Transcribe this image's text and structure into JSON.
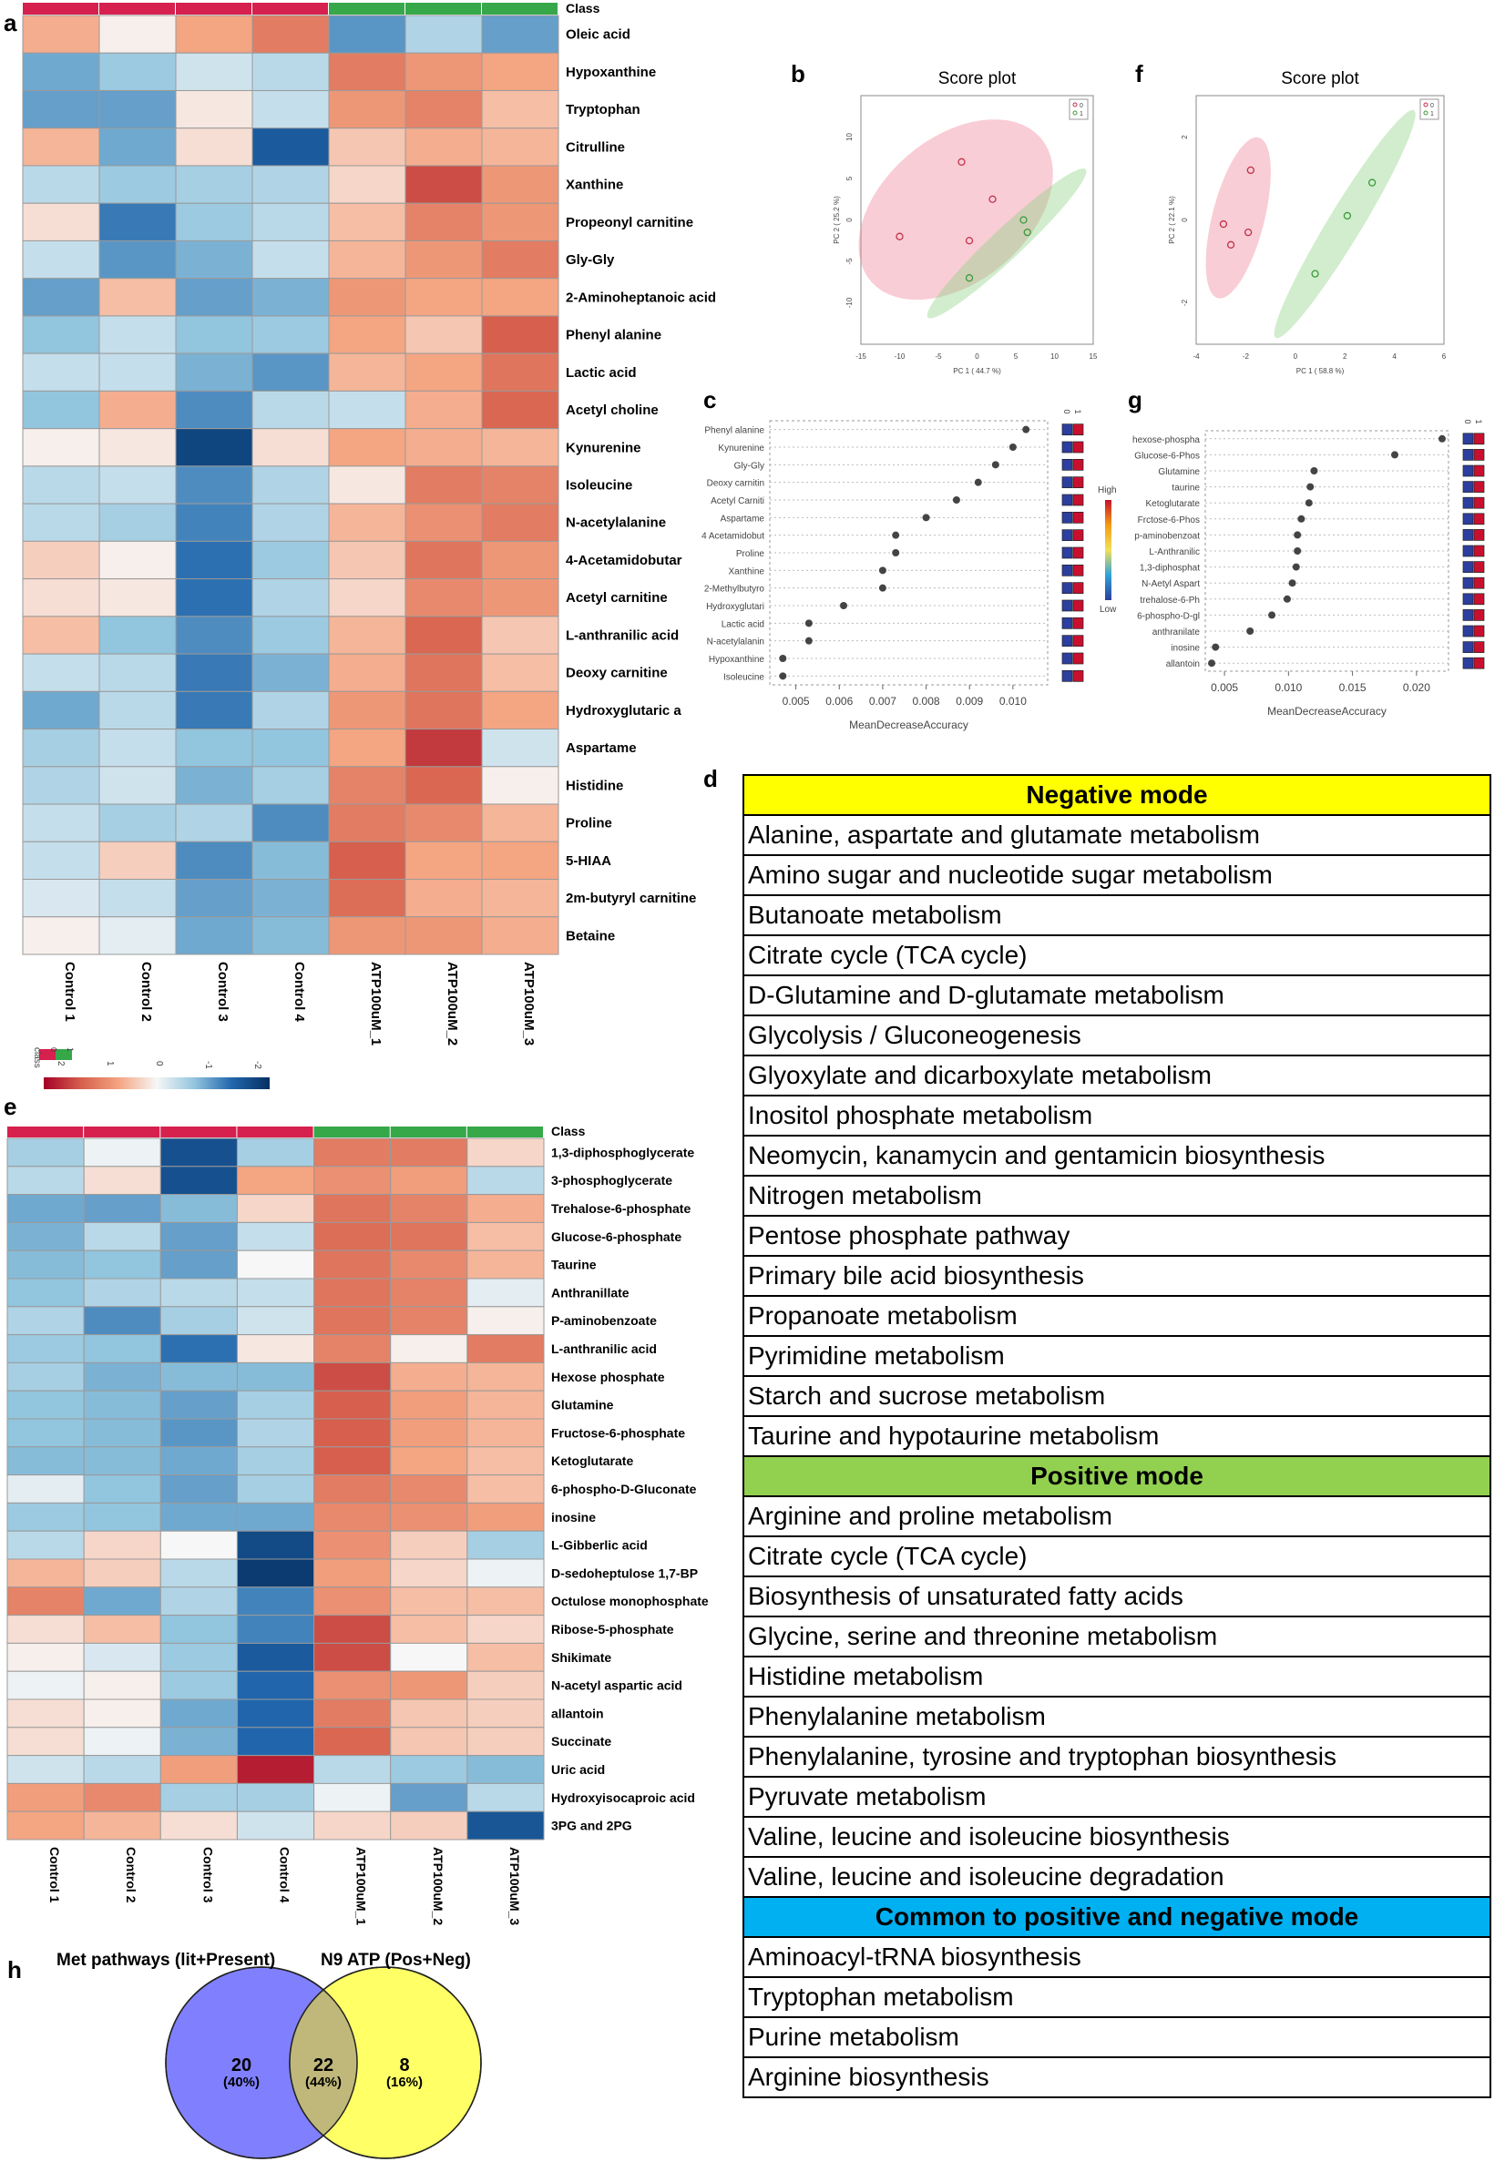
{
  "panel_letters": {
    "a": "a",
    "b": "b",
    "c": "c",
    "d": "d",
    "e": "e",
    "f": "f",
    "g": "g",
    "h": "h"
  },
  "colors": {
    "control": "#d6204e",
    "treated": "#36a84a",
    "dark_red": "#a5001f",
    "light": "#f7f7f7",
    "dark_blue": "#053061",
    "point": "#555555"
  },
  "chart_data": [
    {
      "id": "a",
      "type": "heatmap",
      "class_label": "Class",
      "columns": [
        "Control 1",
        "Control 2",
        "Control 3",
        "Control 4",
        "ATP100uM_1",
        "ATP100uM_2",
        "ATP100uM_3"
      ],
      "column_class": [
        0,
        0,
        0,
        0,
        1,
        1,
        1
      ],
      "rows": [
        "Oleic acid",
        "Hypoxanthine",
        "Tryptophan",
        "Citrulline",
        "Xanthine",
        "Propeonyl carnitine",
        "Gly-Gly",
        "2-Aminoheptanoic acid",
        "Phenyl alanine",
        "Lactic acid",
        "Acetyl choline",
        "Kynurenine",
        "Isoleucine",
        "N-acetylalanine",
        "4-Acetamidobutar",
        "Acetyl carnitine",
        "L-anthranilic acid",
        "Deoxy carnitine",
        "Hydroxyglutaric a",
        "Aspartame",
        "Histidine",
        "Proline",
        "5-HIAA",
        "2m-butyryl carnitine",
        "Betaine"
      ],
      "values": [
        [
          0.9,
          0.1,
          1.0,
          1.6,
          -1.5,
          -0.7,
          -1.4
        ],
        [
          -1.3,
          -0.9,
          -0.4,
          -0.6,
          1.6,
          1.2,
          1.0
        ],
        [
          -1.4,
          -1.4,
          0.2,
          -0.5,
          1.2,
          1.5,
          0.7
        ],
        [
          0.8,
          -1.3,
          0.3,
          -2.2,
          0.6,
          0.9,
          0.8
        ],
        [
          -0.6,
          -0.9,
          -0.8,
          -0.7,
          0.4,
          2.2,
          1.2
        ],
        [
          0.3,
          -1.8,
          -0.9,
          -0.6,
          0.7,
          1.5,
          1.2
        ],
        [
          -0.5,
          -1.5,
          -1.2,
          -0.5,
          0.8,
          1.2,
          1.6
        ],
        [
          -1.4,
          0.7,
          -1.4,
          -1.2,
          1.2,
          1.0,
          1.0
        ],
        [
          -1.0,
          -0.5,
          -1.0,
          -0.9,
          1.0,
          0.6,
          2.0
        ],
        [
          -0.5,
          -0.5,
          -1.2,
          -1.5,
          0.8,
          1.0,
          1.7
        ],
        [
          -1.0,
          0.9,
          -1.6,
          -0.6,
          -0.5,
          0.9,
          1.9
        ],
        [
          0.1,
          0.2,
          -2.6,
          0.3,
          1.0,
          0.9,
          0.8
        ],
        [
          -0.6,
          -0.5,
          -1.6,
          -0.7,
          0.2,
          1.6,
          1.5
        ],
        [
          -0.6,
          -0.8,
          -1.7,
          -0.7,
          0.8,
          1.3,
          1.6
        ],
        [
          0.5,
          0.1,
          -1.9,
          -0.9,
          0.6,
          1.7,
          1.2
        ],
        [
          0.3,
          0.2,
          -1.9,
          -0.7,
          0.4,
          1.4,
          1.2
        ],
        [
          0.7,
          -1.0,
          -1.6,
          -0.9,
          0.8,
          1.9,
          0.6
        ],
        [
          -0.5,
          -0.6,
          -1.8,
          -1.2,
          0.9,
          1.7,
          0.7
        ],
        [
          -1.3,
          -0.6,
          -1.8,
          -0.7,
          1.2,
          1.7,
          1.0
        ],
        [
          -0.8,
          -0.5,
          -1.0,
          -1.0,
          1.0,
          2.4,
          -0.4
        ],
        [
          -0.7,
          -0.4,
          -1.2,
          -0.8,
          1.5,
          1.9,
          0.1
        ],
        [
          -0.5,
          -0.8,
          -0.7,
          -1.6,
          1.6,
          1.4,
          0.8
        ],
        [
          -0.5,
          0.5,
          -1.6,
          -1.1,
          2.0,
          1.0,
          1.0
        ],
        [
          -0.3,
          -0.5,
          -1.4,
          -1.2,
          1.8,
          0.9,
          0.8
        ],
        [
          0.1,
          -0.2,
          -1.3,
          -1.1,
          1.2,
          1.2,
          0.9
        ]
      ],
      "legend_title": "class",
      "legend_classes": [
        "0",
        "1"
      ],
      "colorbar_ticks": [
        "2",
        "1",
        "0",
        "-1",
        "-2"
      ]
    },
    {
      "id": "b",
      "type": "scatter",
      "title": "Score plot",
      "xlabel": "PC 1 ( 44.7 %)",
      "ylabel": "PC 2 ( 25.2 %)",
      "xlim": [
        -15,
        15
      ],
      "ylim": [
        -15,
        15
      ],
      "xticks": [
        "-15",
        "-10",
        "-5",
        "0",
        "5",
        "10",
        "15"
      ],
      "yticks": [
        "10",
        "5",
        "0",
        "-5",
        "-10"
      ],
      "legend": [
        "0",
        "1"
      ],
      "series": [
        {
          "name": "0",
          "points": [
            [
              -2,
              7
            ],
            [
              2,
              2.5
            ],
            [
              -10,
              -2
            ],
            [
              -1,
              -2.5
            ]
          ]
        },
        {
          "name": "1",
          "points": [
            [
              6,
              0
            ],
            [
              6.5,
              -1.5
            ],
            [
              -1,
              -7
            ]
          ]
        }
      ]
    },
    {
      "id": "f",
      "type": "scatter",
      "title": "Score plot",
      "xlabel": "PC 1 ( 58.8 %)",
      "ylabel": "PC 2 ( 22.1 %)",
      "xlim": [
        -4,
        6
      ],
      "ylim": [
        -3,
        3
      ],
      "xticks": [
        "-4",
        "-2",
        "0",
        "2",
        "4",
        "6"
      ],
      "yticks": [
        "2",
        "0",
        "-2"
      ],
      "legend": [
        "0",
        "1"
      ],
      "series": [
        {
          "name": "0",
          "points": [
            [
              -1.8,
              1.2
            ],
            [
              -2.9,
              -0.1
            ],
            [
              -1.9,
              -0.3
            ],
            [
              -2.6,
              -0.6
            ]
          ]
        },
        {
          "name": "1",
          "points": [
            [
              3.1,
              0.9
            ],
            [
              2.1,
              0.1
            ],
            [
              0.8,
              -1.3
            ]
          ]
        }
      ]
    },
    {
      "id": "c",
      "type": "scatter",
      "xlabel": "MeanDecreaseAccuracy",
      "xlim": [
        0.0044,
        0.0108
      ],
      "xticks": [
        "0.005",
        "0.006",
        "0.007",
        "0.008",
        "0.009",
        "0.010"
      ],
      "categories": [
        "Phenyl alanine",
        "Kynurenine",
        "Gly-Gly",
        "Deoxy carnitin",
        "Acetyl Carniti",
        "Aspartame",
        "4 Acetamidobut",
        "Proline",
        "Xanthine",
        "2-Methylbutyro",
        "Hydroxyglutari",
        "Lactic acid",
        "N-acetylalanin",
        "Hypoxanthine",
        "Isoleucine"
      ],
      "values": [
        0.0103,
        0.01,
        0.0096,
        0.0092,
        0.0087,
        0.008,
        0.0073,
        0.0073,
        0.007,
        0.007,
        0.0061,
        0.0053,
        0.0053,
        0.0047,
        0.0047
      ],
      "legend_cols": [
        "0",
        "1"
      ],
      "colorbar_high": "High",
      "colorbar_low": "Low"
    },
    {
      "id": "g",
      "type": "scatter",
      "xlabel": "MeanDecreaseAccuracy",
      "xlim": [
        0.0035,
        0.0225
      ],
      "xticks": [
        "0.005",
        "0.010",
        "0.015",
        "0.020"
      ],
      "categories": [
        "hexose-phospha",
        "Glucose-6-Phos",
        "Glutamine",
        "taurine",
        "Ketoglutarate",
        "Frctose-6-Phos",
        "p-aminobenzoat",
        "L-Anthranilic",
        "1,3-diphosphat",
        "N-Aetyl Aspart",
        "trehalose-6-Ph",
        "6-phospho-D-gl",
        "anthranilate",
        "inosine",
        "allantoin"
      ],
      "values": [
        0.022,
        0.0183,
        0.012,
        0.0117,
        0.0116,
        0.011,
        0.0107,
        0.0107,
        0.0106,
        0.0103,
        0.0099,
        0.0087,
        0.007,
        0.0043,
        0.004
      ],
      "legend_cols": [
        "0",
        "1"
      ]
    },
    {
      "id": "e",
      "type": "heatmap",
      "class_label": "Class",
      "columns": [
        "Control 1",
        "Control 2",
        "Control 3",
        "Control 4",
        "ATP100uM_1",
        "ATP100uM_2",
        "ATP100uM_3"
      ],
      "column_class": [
        0,
        0,
        0,
        0,
        1,
        1,
        1
      ],
      "rows": [
        "1,3-diphosphoglycerate",
        "3-phosphoglycerate",
        "Trehalose-6-phosphate",
        "Glucose-6-phosphate",
        "Taurine",
        "Anthranillate",
        "P-aminobenzoate",
        "L-anthranilic acid",
        "Hexose phosphate",
        "Glutamine",
        "Fructose-6-phosphate",
        "Ketoglutarate",
        "6-phospho-D-Gluconate",
        "inosine",
        "L-Gibberlic acid",
        "D-sedoheptulose 1,7-BP",
        "Octulose monophosphate",
        "Ribose-5-phosphate",
        "Shikimate",
        "N-acetyl aspartic acid",
        "allantoin",
        "Succinate",
        "Uric acid",
        "Hydroxyisocaproic acid",
        "3PG and 2PG"
      ],
      "values": [
        [
          -0.8,
          -0.1,
          -2.4,
          -0.8,
          1.6,
          1.6,
          0.4
        ],
        [
          -0.6,
          0.3,
          -2.4,
          1.0,
          1.3,
          1.1,
          -0.6
        ],
        [
          -1.3,
          -1.4,
          -1.1,
          0.4,
          1.7,
          1.5,
          0.9
        ],
        [
          -1.2,
          -0.6,
          -1.4,
          -0.5,
          1.8,
          1.7,
          0.7
        ],
        [
          -1.1,
          -1.0,
          -1.4,
          0.0,
          1.7,
          1.4,
          0.8
        ],
        [
          -1.0,
          -0.7,
          -0.6,
          -0.5,
          1.7,
          1.5,
          -0.2
        ],
        [
          -0.7,
          -1.6,
          -0.8,
          -0.4,
          1.7,
          1.5,
          0.1
        ],
        [
          -0.9,
          -1.0,
          -1.9,
          0.2,
          1.5,
          0.1,
          1.6
        ],
        [
          -0.8,
          -1.2,
          -1.1,
          -1.1,
          2.2,
          0.9,
          0.8
        ],
        [
          -1.0,
          -1.1,
          -1.4,
          -0.8,
          2.0,
          1.1,
          0.8
        ],
        [
          -1.0,
          -1.1,
          -1.5,
          -0.7,
          2.0,
          1.1,
          0.8
        ],
        [
          -1.1,
          -1.1,
          -1.3,
          -0.8,
          2.0,
          1.0,
          0.7
        ],
        [
          -0.2,
          -1.0,
          -1.4,
          -0.8,
          1.6,
          1.4,
          0.7
        ],
        [
          -0.9,
          -1.0,
          -1.3,
          -1.3,
          1.4,
          1.3,
          1.1
        ],
        [
          -0.6,
          0.4,
          0.0,
          -2.5,
          1.3,
          0.5,
          -0.8
        ],
        [
          0.8,
          0.5,
          -0.6,
          -2.8,
          1.1,
          0.4,
          -0.1
        ],
        [
          1.5,
          -1.3,
          -0.7,
          -1.7,
          1.3,
          0.7,
          0.7
        ],
        [
          0.3,
          0.7,
          -1.0,
          -1.7,
          2.2,
          0.7,
          0.4
        ],
        [
          0.1,
          -0.3,
          -0.9,
          -2.2,
          2.2,
          0.0,
          0.7
        ],
        [
          -0.1,
          0.1,
          -0.9,
          -2.0,
          1.3,
          1.2,
          0.5
        ],
        [
          0.3,
          0.1,
          -1.3,
          -2.0,
          1.6,
          0.6,
          0.5
        ],
        [
          0.3,
          -0.1,
          -1.2,
          -2.0,
          1.9,
          0.6,
          0.5
        ],
        [
          -0.4,
          -0.6,
          1.1,
          2.7,
          -0.6,
          -0.9,
          -1.1
        ],
        [
          1.1,
          1.4,
          -0.8,
          -0.8,
          -0.1,
          -1.4,
          -0.6
        ],
        [
          1.0,
          0.8,
          0.3,
          -0.4,
          0.4,
          0.5,
          -2.3
        ]
      ]
    },
    {
      "id": "h",
      "type": "venn",
      "sets": [
        {
          "name": "Met pathways (lit+Present)",
          "only_count": "20",
          "only_pct": "(40%)",
          "color": "#8080ff"
        },
        {
          "name": "N9 ATP (Pos+Neg)",
          "only_count": "8",
          "only_pct": "(16%)",
          "color": "#ffff66"
        }
      ],
      "overlap_count": "22",
      "overlap_pct": "(44%)",
      "overlap_color": "#c0b87a"
    }
  ],
  "pathways_table": {
    "sections": [
      {
        "header": "Negative mode",
        "color": "#ffff00",
        "items": [
          "Alanine, aspartate and glutamate metabolism",
          "Amino sugar and nucleotide sugar metabolism",
          "Butanoate metabolism",
          "Citrate cycle (TCA cycle)",
          "D-Glutamine and D-glutamate metabolism",
          "Glycolysis / Gluconeogenesis",
          "Glyoxylate and dicarboxylate metabolism",
          "Inositol phosphate metabolism",
          "Neomycin, kanamycin and gentamicin biosynthesis",
          "Nitrogen metabolism",
          "Pentose phosphate pathway",
          "Primary bile acid biosynthesis",
          "Propanoate metabolism",
          "Pyrimidine metabolism",
          "Starch and sucrose metabolism",
          "Taurine and hypotaurine metabolism"
        ]
      },
      {
        "header": "Positive mode",
        "color": "#92d050",
        "items": [
          "Arginine and proline metabolism",
          "Citrate cycle (TCA cycle)",
          "Biosynthesis of unsaturated fatty acids",
          "Glycine, serine and threonine metabolism",
          "Histidine metabolism",
          "Phenylalanine metabolism",
          "Phenylalanine, tyrosine and tryptophan biosynthesis",
          "Pyruvate metabolism",
          "Valine, leucine and isoleucine biosynthesis",
          "Valine, leucine and isoleucine degradation"
        ]
      },
      {
        "header": "Common to positive and negative mode",
        "color": "#00b0f0",
        "items": [
          "Aminoacyl-tRNA biosynthesis",
          "Tryptophan metabolism",
          "Purine metabolism",
          "Arginine biosynthesis"
        ]
      }
    ]
  }
}
